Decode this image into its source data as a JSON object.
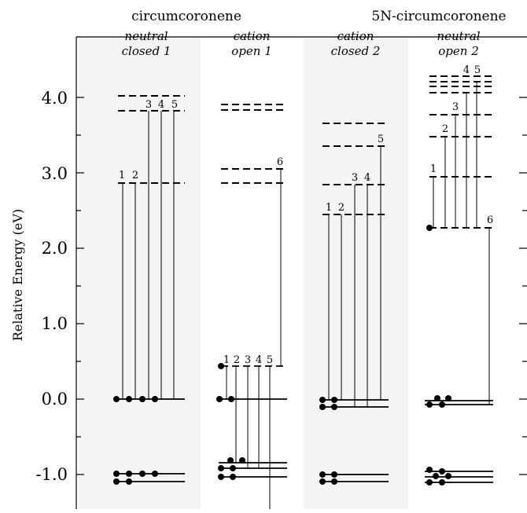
{
  "headers": {
    "left": "circumcoronene",
    "right": "5N-circumcoronene"
  },
  "panels": [
    {
      "line1": "neutral",
      "line2": "closed 1"
    },
    {
      "line1": "cation",
      "line2": "open 1"
    },
    {
      "line1": "cation",
      "line2": "closed 2"
    },
    {
      "line1": "neutral",
      "line2": "open 2"
    }
  ],
  "y_axis": {
    "label": "Relative Energy (eV)",
    "range": [
      -1.2,
      4.5
    ],
    "major_ticks": [
      -1.0,
      0.0,
      1.0,
      2.0,
      3.0,
      4.0
    ],
    "tick_labels": [
      "-1.0",
      "0.0",
      "1.0",
      "2.0",
      "3.0",
      "4.0"
    ]
  },
  "levels": {
    "neutral_closed_1": {
      "occupied": [
        0.0,
        -1.0,
        -1.1
      ],
      "unoccupied": [
        2.86,
        3.83,
        4.02
      ],
      "transitions": [
        {
          "label": "1",
          "from": 0.0,
          "to": 2.86
        },
        {
          "label": "2",
          "from": 0.0,
          "to": 2.86
        },
        {
          "label": "3",
          "from": 0.0,
          "to": 3.83
        },
        {
          "label": "4",
          "from": 0.0,
          "to": 3.83
        },
        {
          "label": "5",
          "from": 0.0,
          "to": 3.83
        }
      ]
    },
    "cation_open_1": {
      "occupied": [
        0.0,
        -0.85,
        -0.92,
        -1.03
      ],
      "singly_occupied": [
        0.43
      ],
      "unoccupied": [
        2.86,
        3.05,
        3.84,
        3.9
      ],
      "transitions": [
        {
          "label": "1",
          "from": 0.43,
          "to": 0.43
        },
        {
          "label": "2",
          "from": -0.85,
          "to": 0.43
        },
        {
          "label": "3",
          "from": -0.92,
          "to": 0.43
        },
        {
          "label": "4",
          "from": -0.92,
          "to": 0.43
        },
        {
          "label": "5",
          "from": -1.2,
          "to": 0.43
        },
        {
          "label": "6",
          "from": 0.43,
          "to": 3.05
        }
      ]
    },
    "cation_closed_2": {
      "occupied": [
        -0.02,
        -0.12,
        -1.0,
        -1.1
      ],
      "unoccupied": [
        2.44,
        2.84,
        3.35,
        3.66
      ],
      "transitions": [
        {
          "label": "1",
          "from": -0.02,
          "to": 2.44
        },
        {
          "label": "2",
          "from": -0.02,
          "to": 2.44
        },
        {
          "label": "3",
          "from": -0.12,
          "to": 2.84
        },
        {
          "label": "4",
          "from": -0.12,
          "to": 2.84
        },
        {
          "label": "5",
          "from": -0.02,
          "to": 3.35
        }
      ]
    },
    "neutral_open_2": {
      "occupied": [
        -0.02,
        -0.07,
        -0.96,
        -1.03,
        -1.1
      ],
      "singly_occupied": [
        2.27
      ],
      "unoccupied": [
        2.27,
        2.95,
        3.48,
        3.77,
        4.07,
        4.16,
        4.23,
        4.3
      ],
      "transitions": [
        {
          "label": "1",
          "from": 2.27,
          "to": 2.95
        },
        {
          "label": "2",
          "from": 2.27,
          "to": 3.48
        },
        {
          "label": "3",
          "from": 2.27,
          "to": 3.77
        },
        {
          "label": "4",
          "from": 2.27,
          "to": 4.16
        },
        {
          "label": "5",
          "from": 2.27,
          "to": 4.16
        },
        {
          "label": "6",
          "from": -0.07,
          "to": 2.27
        }
      ]
    }
  }
}
